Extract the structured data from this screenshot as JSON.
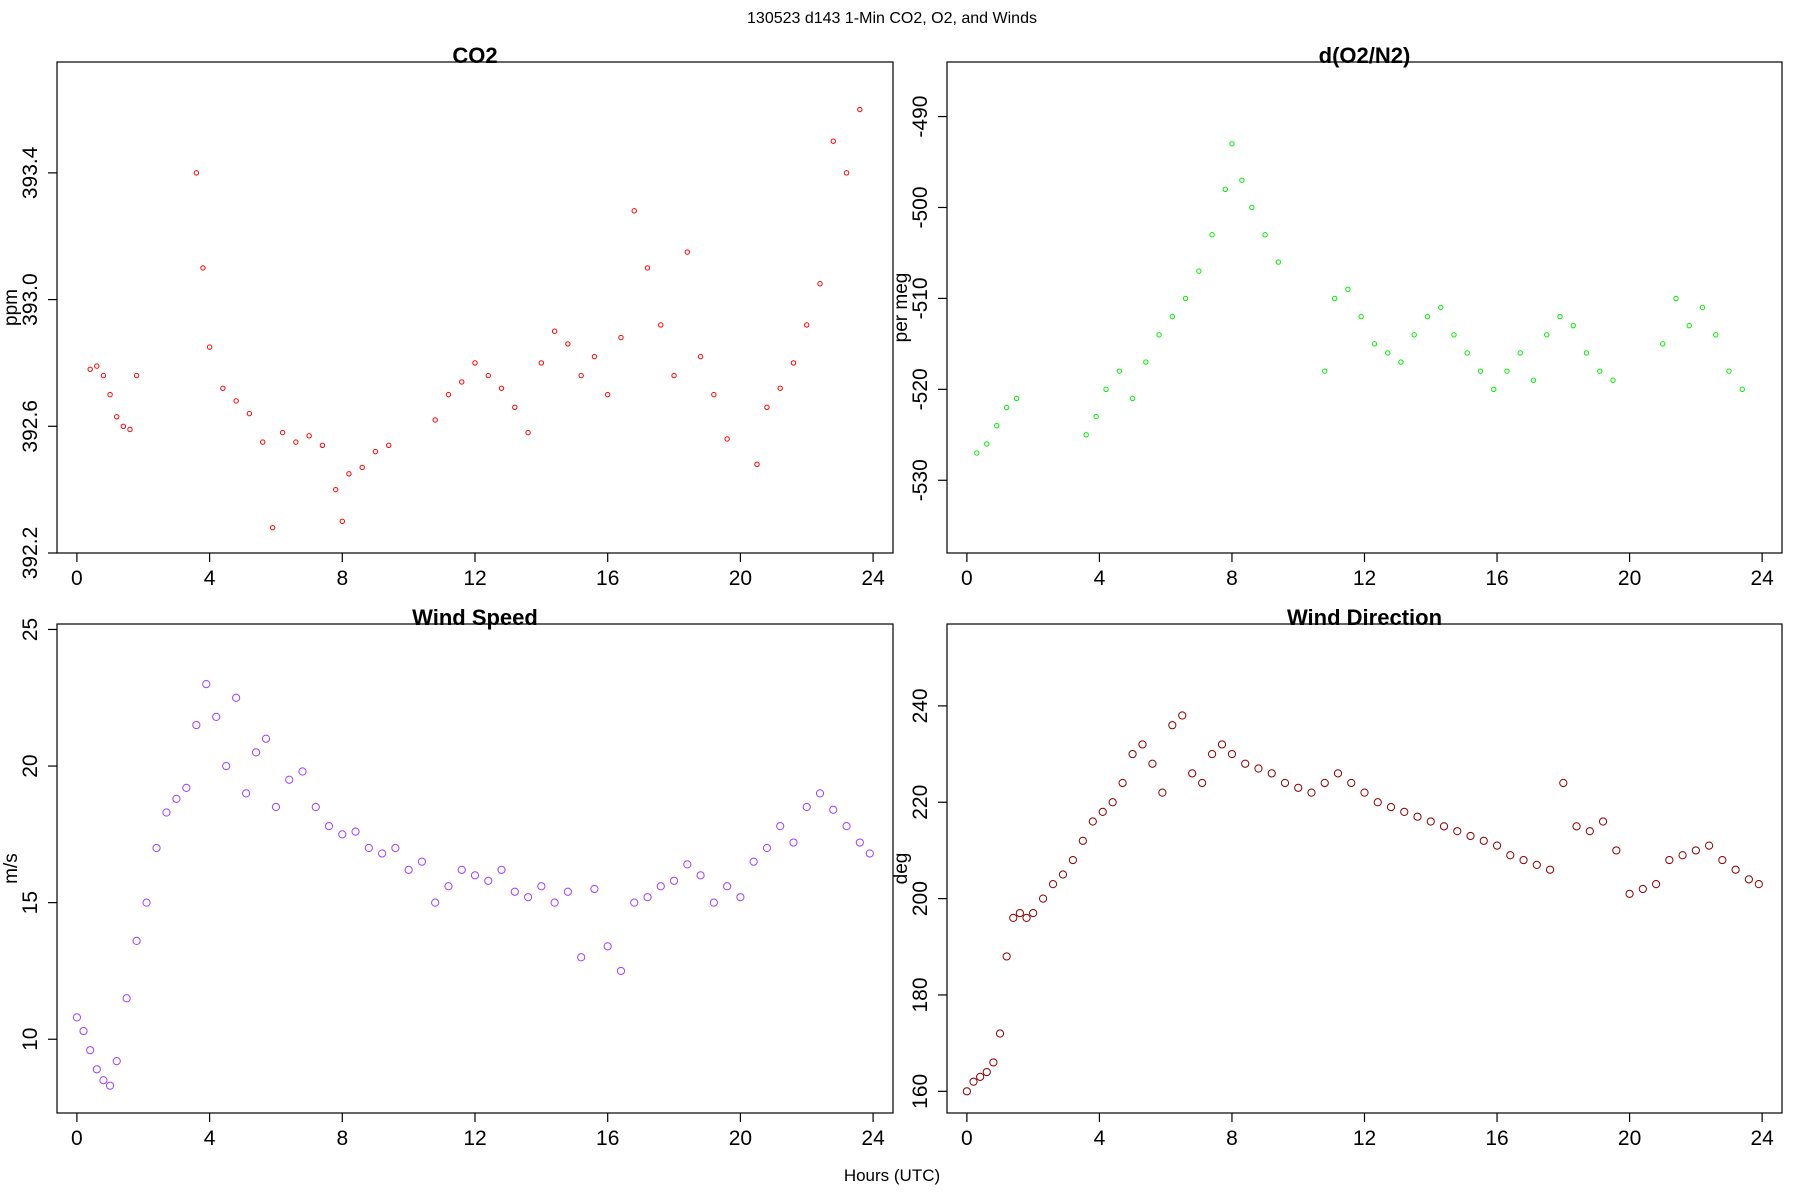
{
  "figure": {
    "title": "130523   d143   1-Min CO2, O2, and Winds",
    "xlabel": "Hours (UTC)"
  },
  "chart_data": [
    {
      "id": "co2",
      "type": "scatter",
      "title": "CO2",
      "xlabel": "",
      "ylabel": "ppm",
      "xlim": [
        -0.6,
        24.6
      ],
      "ylim": [
        392.2,
        393.75
      ],
      "xticks": [
        0,
        4,
        8,
        12,
        16,
        20,
        24
      ],
      "yticks": [
        392.2,
        392.6,
        393.0,
        393.4
      ],
      "ytick_labels": [
        "392.2",
        "392.6",
        "393.0",
        "393.4"
      ],
      "color": "#ff0000",
      "marker": "circle",
      "marker_size": 2.2,
      "x": [
        0.4,
        0.6,
        0.8,
        1.0,
        1.2,
        1.4,
        1.6,
        1.8,
        3.6,
        3.8,
        4.0,
        4.4,
        4.8,
        5.2,
        5.6,
        5.9,
        6.2,
        6.6,
        7.0,
        7.4,
        7.8,
        8.0,
        8.2,
        8.6,
        9.0,
        9.4,
        10.8,
        11.2,
        11.6,
        12.0,
        12.4,
        12.8,
        13.2,
        13.6,
        14.0,
        14.4,
        14.8,
        15.2,
        15.6,
        16.0,
        16.4,
        16.8,
        17.2,
        17.6,
        18.0,
        18.4,
        18.8,
        19.2,
        19.6,
        20.5,
        20.8,
        21.2,
        21.6,
        22.0,
        22.4,
        22.8,
        23.2,
        23.6
      ],
      "y": [
        392.78,
        392.79,
        392.76,
        392.7,
        392.63,
        392.6,
        392.59,
        392.76,
        393.4,
        393.1,
        392.85,
        392.72,
        392.68,
        392.64,
        392.55,
        392.28,
        392.58,
        392.55,
        392.57,
        392.54,
        392.4,
        392.3,
        392.45,
        392.47,
        392.52,
        392.54,
        392.62,
        392.7,
        392.74,
        392.8,
        392.76,
        392.72,
        392.66,
        392.58,
        392.8,
        392.9,
        392.86,
        392.76,
        392.82,
        392.7,
        392.88,
        393.28,
        393.1,
        392.92,
        392.76,
        393.15,
        392.82,
        392.7,
        392.56,
        392.48,
        392.66,
        392.72,
        392.8,
        392.92,
        393.05,
        393.5,
        393.4,
        393.6
      ]
    },
    {
      "id": "o2",
      "type": "scatter",
      "title": "d(O2/N2)",
      "xlabel": "",
      "ylabel": "per meg",
      "xlim": [
        -0.6,
        24.6
      ],
      "ylim": [
        -538,
        -484
      ],
      "xticks": [
        0,
        4,
        8,
        12,
        16,
        20,
        24
      ],
      "yticks": [
        -530,
        -520,
        -510,
        -500,
        -490
      ],
      "ytick_labels": [
        "-530",
        "-520",
        "-510",
        "-500",
        "-490"
      ],
      "color": "#00ee00",
      "marker": "circle",
      "marker_size": 2.2,
      "x": [
        0.3,
        0.6,
        0.9,
        1.2,
        1.5,
        3.6,
        3.9,
        4.2,
        4.6,
        5.0,
        5.4,
        5.8,
        6.2,
        6.6,
        7.0,
        7.4,
        7.8,
        8.0,
        8.3,
        8.6,
        9.0,
        9.4,
        10.8,
        11.1,
        11.5,
        11.9,
        12.3,
        12.7,
        13.1,
        13.5,
        13.9,
        14.3,
        14.7,
        15.1,
        15.5,
        15.9,
        16.3,
        16.7,
        17.1,
        17.5,
        17.9,
        18.3,
        18.7,
        19.1,
        19.5,
        21.0,
        21.4,
        21.8,
        22.2,
        22.6,
        23.0,
        23.4
      ],
      "y": [
        -527,
        -526,
        -524,
        -522,
        -521,
        -525,
        -523,
        -520,
        -518,
        -521,
        -517,
        -514,
        -512,
        -510,
        -507,
        -503,
        -498,
        -493,
        -497,
        -500,
        -503,
        -506,
        -518,
        -510,
        -509,
        -512,
        -515,
        -516,
        -517,
        -514,
        -512,
        -511,
        -514,
        -516,
        -518,
        -520,
        -518,
        -516,
        -519,
        -514,
        -512,
        -513,
        -516,
        -518,
        -519,
        -515,
        -510,
        -513,
        -511,
        -514,
        -518,
        -520
      ]
    },
    {
      "id": "wind_speed",
      "type": "scatter",
      "title": "Wind Speed",
      "xlabel": "",
      "ylabel": "m/s",
      "xlim": [
        -0.6,
        24.6
      ],
      "ylim": [
        7.3,
        25.2
      ],
      "xticks": [
        0,
        4,
        8,
        12,
        16,
        20,
        24
      ],
      "yticks": [
        10,
        15,
        20,
        25
      ],
      "ytick_labels": [
        "10",
        "15",
        "20",
        "25"
      ],
      "color": "#a040ff",
      "marker": "circle",
      "marker_size": 3.6,
      "x": [
        0.0,
        0.2,
        0.4,
        0.6,
        0.8,
        1.0,
        1.2,
        1.5,
        1.8,
        2.1,
        2.4,
        2.7,
        3.0,
        3.3,
        3.6,
        3.9,
        4.2,
        4.5,
        4.8,
        5.1,
        5.4,
        5.7,
        6.0,
        6.4,
        6.8,
        7.2,
        7.6,
        8.0,
        8.4,
        8.8,
        9.2,
        9.6,
        10.0,
        10.4,
        10.8,
        11.2,
        11.6,
        12.0,
        12.4,
        12.8,
        13.2,
        13.6,
        14.0,
        14.4,
        14.8,
        15.2,
        15.6,
        16.0,
        16.4,
        16.8,
        17.2,
        17.6,
        18.0,
        18.4,
        18.8,
        19.2,
        19.6,
        20.0,
        20.4,
        20.8,
        21.2,
        21.6,
        22.0,
        22.4,
        22.8,
        23.2,
        23.6,
        23.9
      ],
      "y": [
        10.8,
        10.3,
        9.6,
        8.9,
        8.5,
        8.3,
        9.2,
        11.5,
        13.6,
        15.0,
        17.0,
        18.3,
        18.8,
        19.2,
        21.5,
        23.0,
        21.8,
        20.0,
        22.5,
        19.0,
        20.5,
        21.0,
        18.5,
        19.5,
        19.8,
        18.5,
        17.8,
        17.5,
        17.6,
        17.0,
        16.8,
        17.0,
        16.2,
        16.5,
        15.0,
        15.6,
        16.2,
        16.0,
        15.8,
        16.2,
        15.4,
        15.2,
        15.6,
        15.0,
        15.4,
        13.0,
        15.5,
        13.4,
        12.5,
        15.0,
        15.2,
        15.6,
        15.8,
        16.4,
        16.0,
        15.0,
        15.6,
        15.2,
        16.5,
        17.0,
        17.8,
        17.2,
        18.5,
        19.0,
        18.4,
        17.8,
        17.2,
        16.8
      ]
    },
    {
      "id": "wind_dir",
      "type": "scatter",
      "title": "Wind Direction",
      "xlabel": "",
      "ylabel": "deg",
      "xlim": [
        -0.6,
        24.6
      ],
      "ylim": [
        155.5,
        257
      ],
      "xticks": [
        0,
        4,
        8,
        12,
        16,
        20,
        24
      ],
      "yticks": [
        160,
        180,
        200,
        220,
        240
      ],
      "ytick_labels": [
        "160",
        "180",
        "200",
        "220",
        "240"
      ],
      "color": "#8b0000",
      "marker": "circle",
      "marker_size": 3.6,
      "x": [
        0.0,
        0.2,
        0.4,
        0.6,
        0.8,
        1.0,
        1.2,
        1.4,
        1.6,
        1.8,
        2.0,
        2.3,
        2.6,
        2.9,
        3.2,
        3.5,
        3.8,
        4.1,
        4.4,
        4.7,
        5.0,
        5.3,
        5.6,
        5.9,
        6.2,
        6.5,
        6.8,
        7.1,
        7.4,
        7.7,
        8.0,
        8.4,
        8.8,
        9.2,
        9.6,
        10.0,
        10.4,
        10.8,
        11.2,
        11.6,
        12.0,
        12.4,
        12.8,
        13.2,
        13.6,
        14.0,
        14.4,
        14.8,
        15.2,
        15.6,
        16.0,
        16.4,
        16.8,
        17.2,
        17.6,
        18.0,
        18.4,
        18.8,
        19.2,
        19.6,
        20.0,
        20.4,
        20.8,
        21.2,
        21.6,
        22.0,
        22.4,
        22.8,
        23.2,
        23.6,
        23.9
      ],
      "y": [
        160,
        162,
        163,
        164,
        166,
        172,
        188,
        196,
        197,
        196,
        197,
        200,
        203,
        205,
        208,
        212,
        216,
        218,
        220,
        224,
        230,
        232,
        228,
        222,
        236,
        238,
        226,
        224,
        230,
        232,
        230,
        228,
        227,
        226,
        224,
        223,
        222,
        224,
        226,
        224,
        222,
        220,
        219,
        218,
        217,
        216,
        215,
        214,
        213,
        212,
        211,
        209,
        208,
        207,
        206,
        224,
        215,
        214,
        216,
        210,
        201,
        202,
        203,
        208,
        209,
        210,
        211,
        208,
        206,
        204,
        203
      ]
    }
  ]
}
